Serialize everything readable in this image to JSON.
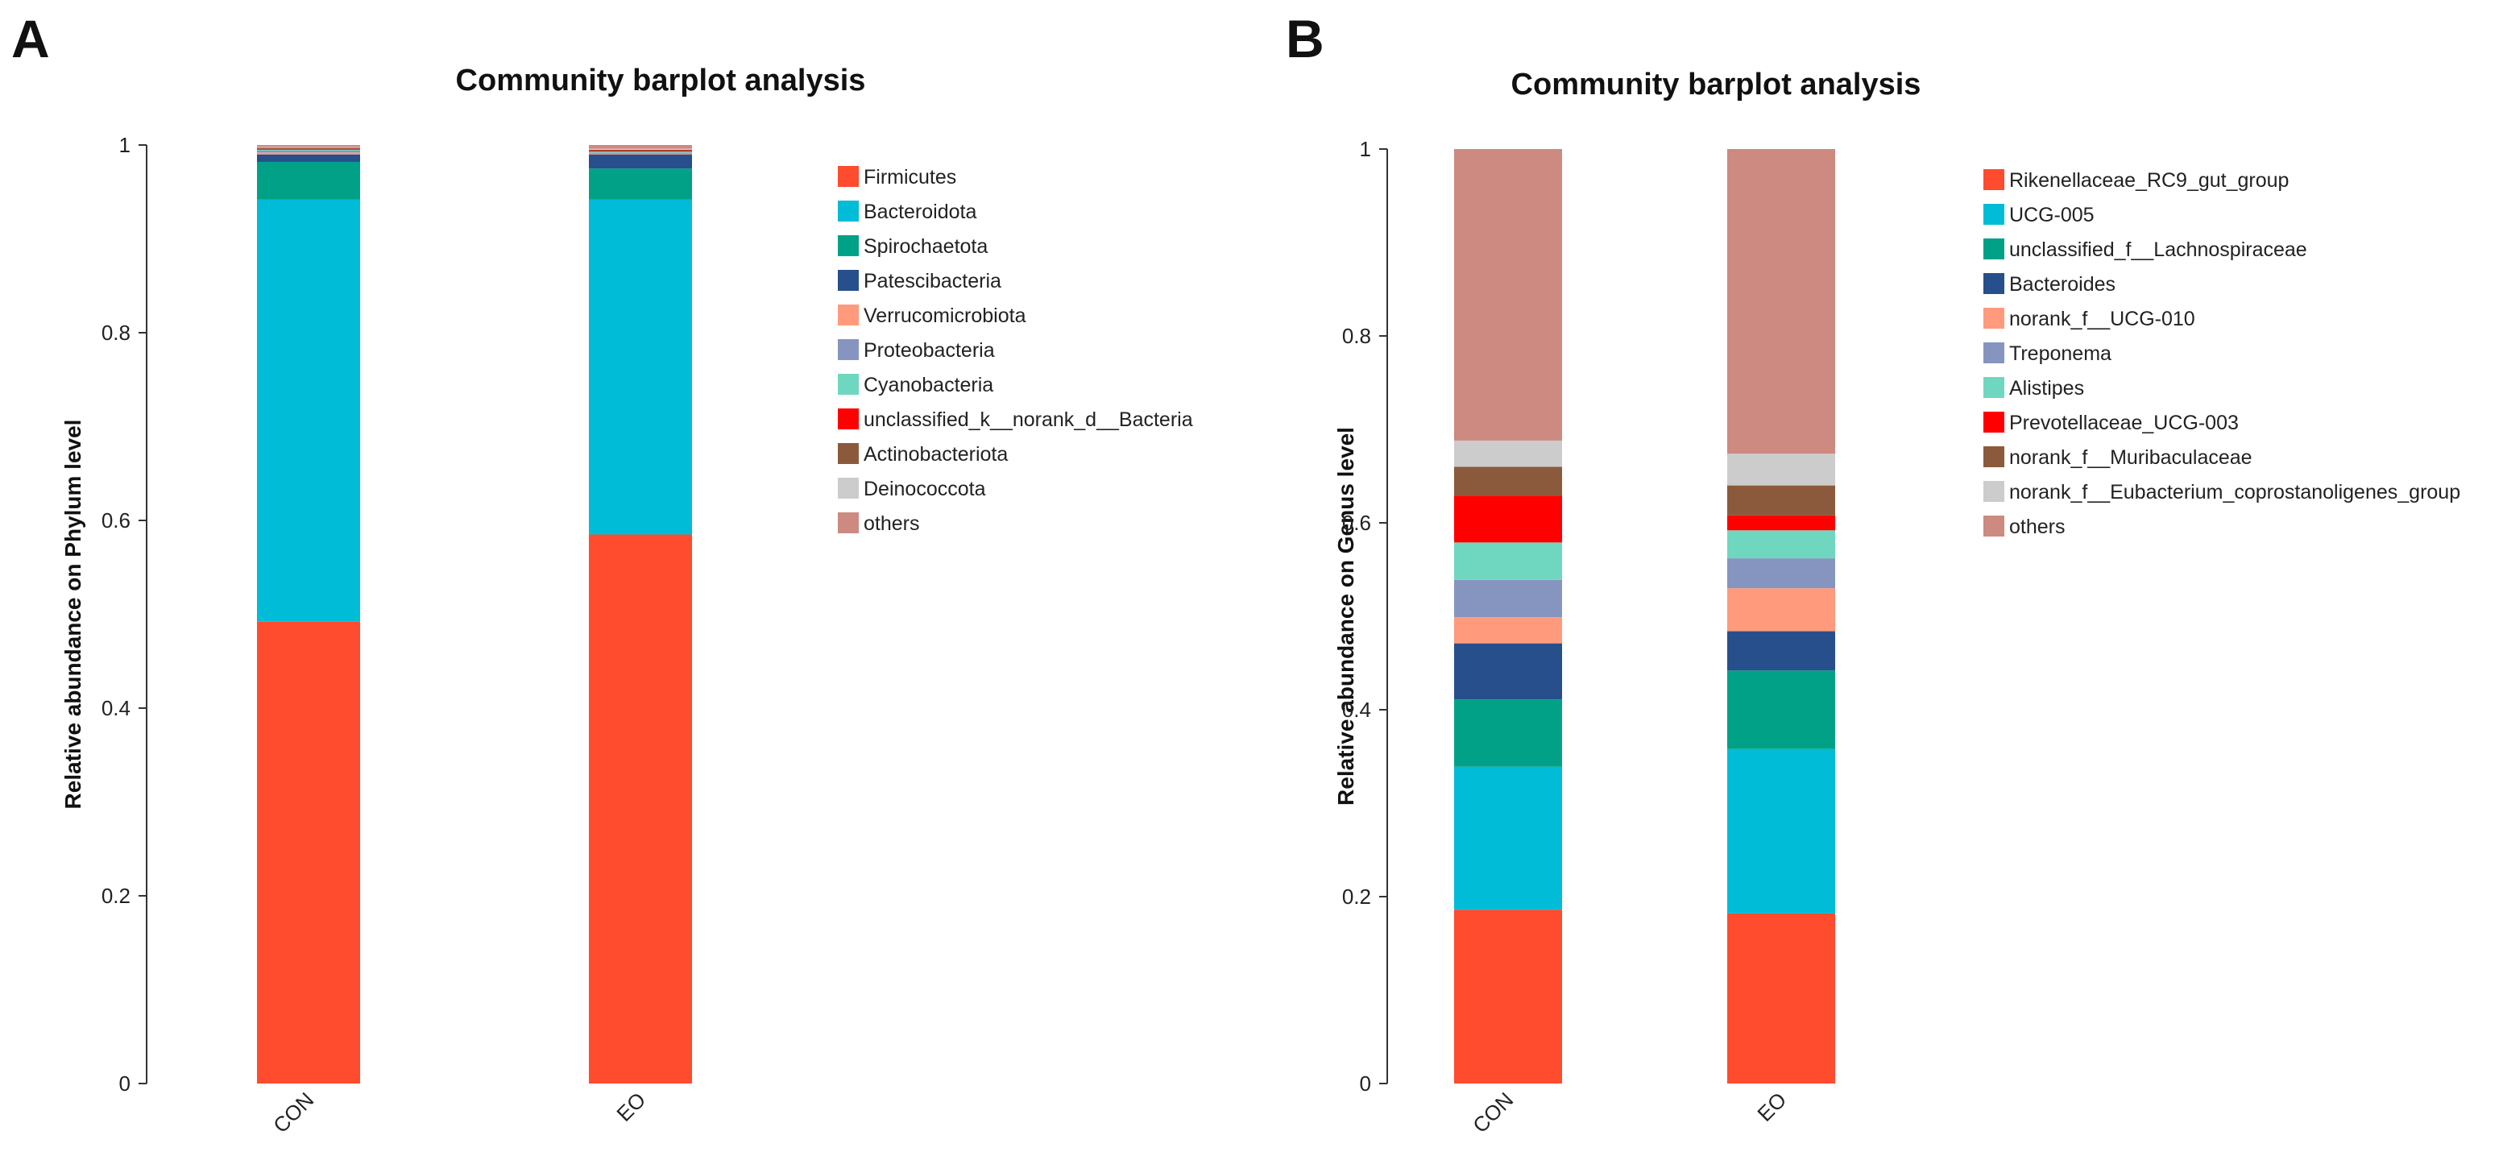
{
  "panels": [
    {
      "letter": "A"
    },
    {
      "letter": "B"
    }
  ],
  "chart_data": [
    {
      "type": "bar",
      "stacked": true,
      "title": "Community barplot analysis",
      "ylabel": "Relative abundance on Phylum level",
      "xlabel": "",
      "ylim": [
        0,
        1
      ],
      "yticks": [
        0,
        0.2,
        0.4,
        0.6,
        0.8,
        1
      ],
      "ytick_labels": [
        "0",
        "0.2",
        "0.4",
        "0.6",
        "0.8",
        "1"
      ],
      "categories": [
        "CON",
        "EO"
      ],
      "legend_position": "right",
      "series": [
        {
          "name": "Firmicutes",
          "color": "#FF4B2E",
          "values": [
            0.492,
            0.585
          ]
        },
        {
          "name": "Bacteroidota",
          "color": "#00BCD6",
          "values": [
            0.45,
            0.357
          ]
        },
        {
          "name": "Spirochaetota",
          "color": "#00A186",
          "values": [
            0.04,
            0.033
          ]
        },
        {
          "name": "Patescibacteria",
          "color": "#264F8C",
          "values": [
            0.008,
            0.015
          ]
        },
        {
          "name": "Verrucomicrobiota",
          "color": "#FF9A7C",
          "values": [
            0.002,
            0.001
          ]
        },
        {
          "name": "Proteobacteria",
          "color": "#8595BF",
          "values": [
            0.002,
            0.001
          ]
        },
        {
          "name": "Cyanobacteria",
          "color": "#6FD7C0",
          "values": [
            0.001,
            0.001
          ]
        },
        {
          "name": "unclassified_k__norank_d__Bacteria",
          "color": "#FF0000",
          "values": [
            0.001,
            0.001
          ]
        },
        {
          "name": "Actinobacteriota",
          "color": "#8B5A3C",
          "values": [
            0.001,
            0.001
          ]
        },
        {
          "name": "Deinococcota",
          "color": "#CCCCCC",
          "values": [
            0.001,
            0.001
          ]
        },
        {
          "name": "others",
          "color": "#CC8A80",
          "values": [
            0.002,
            0.004
          ]
        }
      ]
    },
    {
      "type": "bar",
      "stacked": true,
      "title": "Community barplot analysis",
      "ylabel": "Relative abundance on Genus level",
      "xlabel": "",
      "ylim": [
        0,
        1
      ],
      "yticks": [
        0,
        0.2,
        0.4,
        0.6,
        0.8,
        1
      ],
      "ytick_labels": [
        "0",
        "0.2",
        "0.4",
        "0.6",
        "0.8",
        "1"
      ],
      "categories": [
        "CON",
        "EO"
      ],
      "legend_position": "right",
      "series": [
        {
          "name": "Rikenellaceae_RC9_gut_group",
          "color": "#FF4B2E",
          "values": [
            0.186,
            0.182
          ]
        },
        {
          "name": "UCG-005",
          "color": "#00BCD6",
          "values": [
            0.153,
            0.176
          ]
        },
        {
          "name": "unclassified_f__Lachnospiraceae",
          "color": "#00A186",
          "values": [
            0.072,
            0.084
          ]
        },
        {
          "name": "Bacteroides",
          "color": "#264F8C",
          "values": [
            0.06,
            0.042
          ]
        },
        {
          "name": "norank_f__UCG-010",
          "color": "#FF9A7C",
          "values": [
            0.028,
            0.046
          ]
        },
        {
          "name": "Treponema",
          "color": "#8595BF",
          "values": [
            0.04,
            0.032
          ]
        },
        {
          "name": "Alistipes",
          "color": "#6FD7C0",
          "values": [
            0.04,
            0.03
          ]
        },
        {
          "name": "Prevotellaceae_UCG-003",
          "color": "#FF0000",
          "values": [
            0.05,
            0.016
          ]
        },
        {
          "name": "norank_f__Muribaculaceae",
          "color": "#8B5A3C",
          "values": [
            0.031,
            0.032
          ]
        },
        {
          "name": "norank_f__Eubacterium_coprostanoligenes_group",
          "color": "#CCCCCC",
          "values": [
            0.028,
            0.034
          ]
        },
        {
          "name": "others",
          "color": "#CC8A80",
          "values": [
            0.312,
            0.326
          ]
        }
      ]
    }
  ]
}
